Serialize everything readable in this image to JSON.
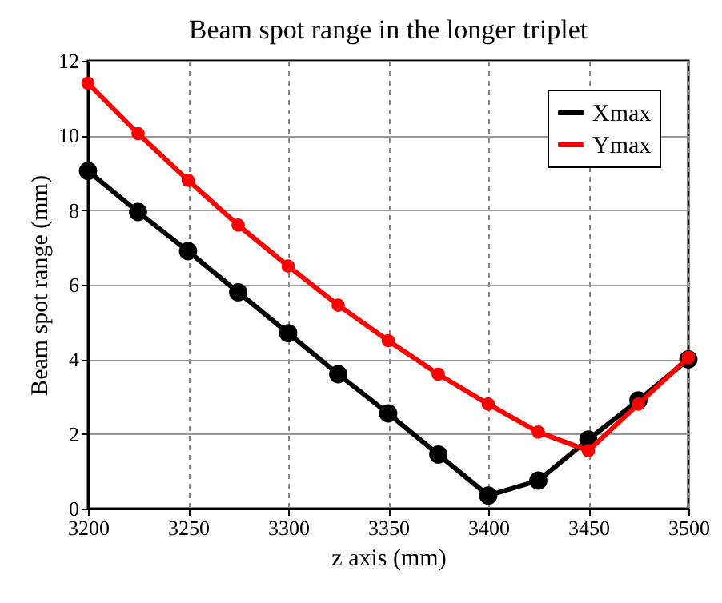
{
  "chart_data": {
    "type": "line",
    "title": "Beam spot range in the longer triplet",
    "xlabel": "z axis (mm)",
    "ylabel": "Beam spot range (mm)",
    "x": [
      3200,
      3225,
      3250,
      3275,
      3300,
      3325,
      3350,
      3375,
      3400,
      3425,
      3450,
      3475,
      3500
    ],
    "series": [
      {
        "name": "Xmax",
        "color": "#000000",
        "values": [
          9.05,
          7.95,
          6.9,
          5.8,
          4.7,
          3.6,
          2.55,
          1.45,
          0.35,
          0.75,
          1.85,
          2.9,
          4.0
        ]
      },
      {
        "name": "Ymax",
        "color": "#ff0000",
        "values": [
          11.4,
          10.05,
          8.8,
          7.6,
          6.5,
          5.45,
          4.5,
          3.6,
          2.8,
          2.05,
          1.55,
          2.8,
          4.05
        ]
      }
    ],
    "xlim": [
      3200,
      3500
    ],
    "xticks": [
      3200,
      3250,
      3300,
      3350,
      3400,
      3450,
      3500
    ],
    "ylim": [
      0,
      12
    ],
    "yticks": [
      0,
      2,
      4,
      6,
      8,
      10,
      12
    ],
    "grid": true,
    "legend": "top right",
    "marker": "circle",
    "line_style": "solid"
  }
}
